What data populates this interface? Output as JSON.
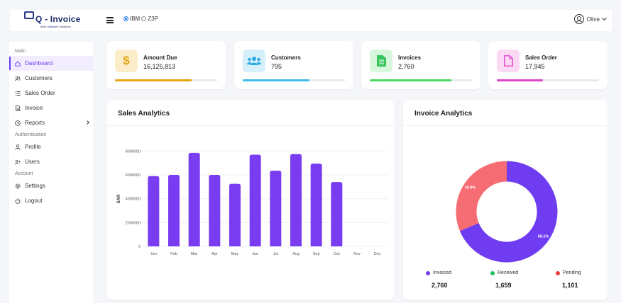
{
  "header": {
    "logo_text": "Q - Invoice",
    "logo_tagline": "Olive Software Solutions",
    "radio_options": [
      {
        "label": "IBM",
        "selected": true
      },
      {
        "label": "Z3P",
        "selected": false
      }
    ],
    "user_name": "Olive"
  },
  "sidebar": {
    "sections": {
      "main": "Main",
      "authentication": "Authentication",
      "account": "Account"
    },
    "items": [
      {
        "label": "Dashboard",
        "icon": "home-icon",
        "active": true
      },
      {
        "label": "Customers",
        "icon": "users-icon"
      },
      {
        "label": "Sales Order",
        "icon": "list-icon"
      },
      {
        "label": "Invoice",
        "icon": "document-icon"
      },
      {
        "label": "Reports",
        "icon": "clock-icon"
      },
      {
        "label": "Profile",
        "icon": "user-icon"
      },
      {
        "label": "Users",
        "icon": "user-add-icon"
      },
      {
        "label": "Settings",
        "icon": "gear-icon"
      },
      {
        "label": "Logout",
        "icon": "power-icon"
      }
    ]
  },
  "stats": [
    {
      "label": "Amount Due",
      "value": "16,125,813",
      "icon": "dollar-icon",
      "icon_bg": "#fdecc8",
      "icon_color": "#e3a713",
      "bar_color": "#e3a713",
      "progress": 0.75
    },
    {
      "label": "Customers",
      "value": "795",
      "icon": "users-icon",
      "icon_bg": "#d6f0fb",
      "icon_color": "#2ba9e0",
      "bar_color": "#3fbce9",
      "progress": 0.65
    },
    {
      "label": "Invoices",
      "value": "2,760",
      "icon": "document-icon",
      "icon_bg": "#d7f7dc",
      "icon_color": "#35c55b",
      "bar_color": "#4cd964",
      "progress": 0.8
    },
    {
      "label": "Sales Order",
      "value": "17,945",
      "icon": "file-icon",
      "icon_bg": "#fbd9f4",
      "icon_color": "#e045c8",
      "bar_color": "#e045c8",
      "progress": 0.45
    }
  ],
  "sales": {
    "title": "Sales Analytics"
  },
  "invoice": {
    "title": "Invoice Analytics",
    "legend": [
      {
        "label": "Invoiced",
        "value": "2,760",
        "color": "#6f3cf2"
      },
      {
        "label": "Received",
        "value": "1,659",
        "color": "#1fbf5a"
      },
      {
        "label": "Pending",
        "value": "1,101",
        "color": "#ef3e3e"
      }
    ]
  },
  "chart_data": [
    {
      "type": "bar",
      "categories": [
        "Jan",
        "Feb",
        "Mar",
        "Apr",
        "May",
        "Jun",
        "Jul",
        "Aug",
        "Sep",
        "Oct",
        "Nov",
        "Dec"
      ],
      "values": [
        5900000,
        6000000,
        7850000,
        6000000,
        5250000,
        7700000,
        6350000,
        7750000,
        6950000,
        5400000,
        0,
        0
      ],
      "ylabel": "SAR",
      "ylim": [
        0,
        8500000
      ],
      "yticks": [
        0,
        2000000,
        4000000,
        6000000,
        8000000
      ],
      "ytick_labels": [
        "0",
        "2000000",
        "4000000",
        "6000000",
        "8000000"
      ],
      "color": "#7a3cf0",
      "grid": true
    },
    {
      "type": "pie",
      "labels": [
        "Invoiced",
        "Pending"
      ],
      "values": [
        68.1,
        30.9
      ],
      "data_labels": [
        "68.1%",
        "30.9%"
      ],
      "colors": [
        "#6f3cf2",
        "#f56c73"
      ],
      "donut": true
    }
  ]
}
